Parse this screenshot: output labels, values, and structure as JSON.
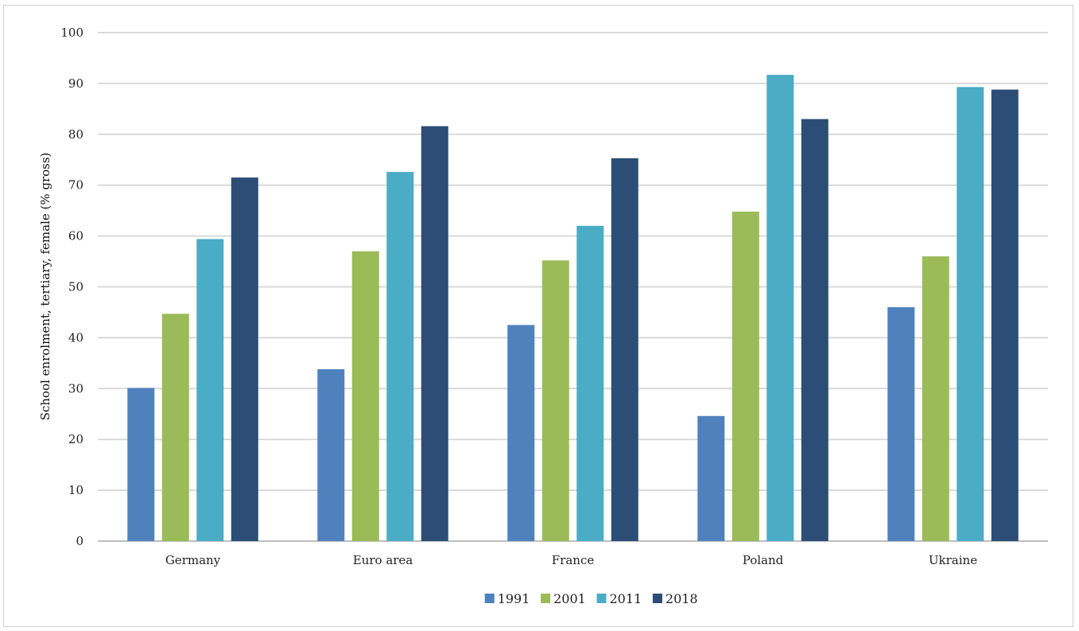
{
  "chart_data": {
    "type": "bar",
    "title": "",
    "xlabel": "",
    "ylabel": "School enrolment, tertiary, female (% gross)",
    "ylim": [
      0,
      100
    ],
    "yticks": [
      0,
      10,
      20,
      30,
      40,
      50,
      60,
      70,
      80,
      90,
      100
    ],
    "grid": true,
    "legend_position": "bottom",
    "categories": [
      "Germany",
      "Euro area",
      "France",
      "Poland",
      "Ukraine"
    ],
    "series": [
      {
        "name": "1991",
        "color": "#4f81bd",
        "values": [
          30.1,
          33.8,
          42.5,
          24.6,
          46.0
        ]
      },
      {
        "name": "2001",
        "color": "#9bbb59",
        "values": [
          44.7,
          57.0,
          55.2,
          64.8,
          56.0
        ]
      },
      {
        "name": "2011",
        "color": "#4bacc6",
        "values": [
          59.4,
          72.6,
          62.0,
          91.7,
          89.3
        ]
      },
      {
        "name": "2018",
        "color": "#2c4d75",
        "values": [
          71.5,
          81.6,
          75.3,
          83.0,
          88.8
        ]
      }
    ]
  }
}
